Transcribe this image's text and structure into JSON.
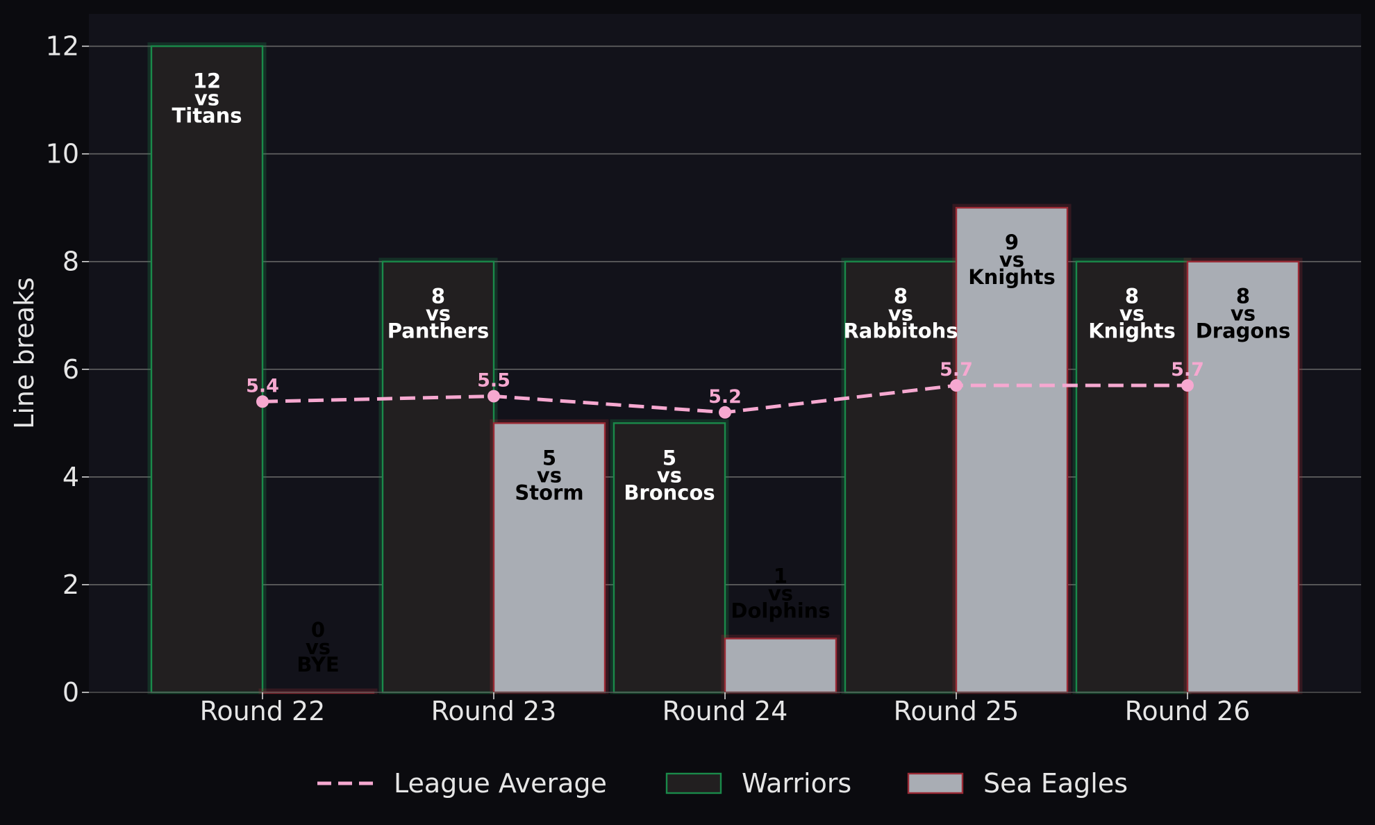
{
  "chart_data": {
    "type": "bar",
    "ylabel": "Line breaks",
    "xlabel": "",
    "ylim": [
      0,
      12.6
    ],
    "yticks": [
      0,
      2,
      4,
      6,
      8,
      10,
      12
    ],
    "grid": true,
    "legend_position": "bottom-center",
    "categories": [
      "Round 22",
      "Round 23",
      "Round 24",
      "Round 25",
      "Round 26"
    ],
    "series": [
      {
        "name": "Warriors",
        "kind": "bar",
        "values": [
          12,
          8,
          5,
          8,
          8
        ],
        "opponents": [
          "Titans",
          "Panthers",
          "Broncos",
          "Rabbitohs",
          "Knights"
        ],
        "fill": "#221f20",
        "edge": "#1a8a4a",
        "label_color": "#ffffff"
      },
      {
        "name": "Sea Eagles",
        "kind": "bar",
        "values": [
          0,
          5,
          1,
          9,
          8
        ],
        "opponents": [
          "BYE",
          "Storm",
          "Dolphins",
          "Knights",
          "Dragons"
        ],
        "fill": "#a9adb4",
        "edge": "#9a2a35",
        "label_color": "#000000"
      },
      {
        "name": "League Average",
        "kind": "line",
        "values": [
          5.4,
          5.5,
          5.2,
          5.7,
          5.7
        ],
        "color": "#f6a8d0"
      }
    ],
    "colors": {
      "page_background": "#0b0b0f",
      "plot_background": "#12121a",
      "grid": "#666666",
      "tick_text": "#e6e6e6"
    }
  }
}
